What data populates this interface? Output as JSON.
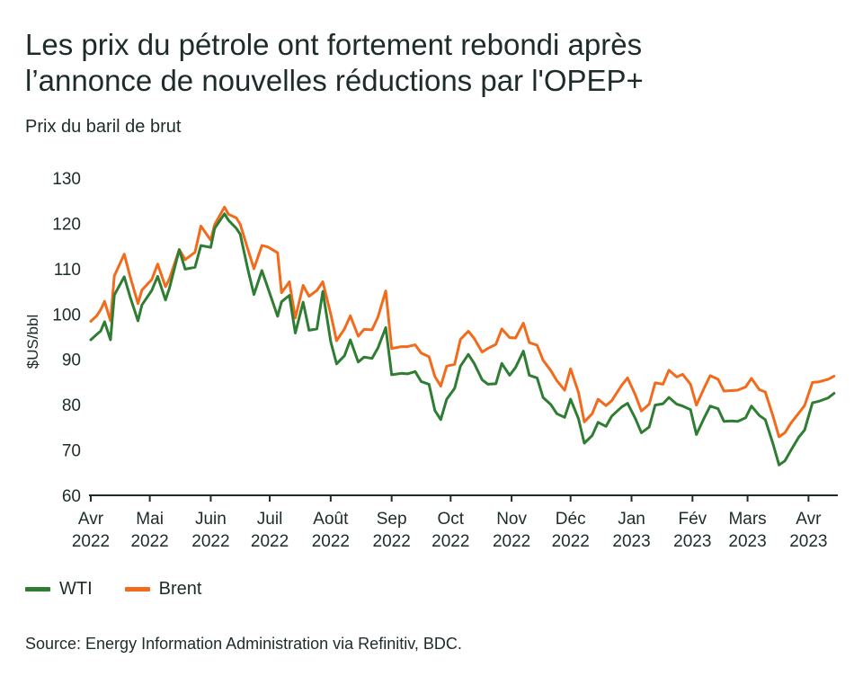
{
  "title_line1": "Les prix du pétrole ont fortement rebondi après",
  "title_line2": "l’annonce de nouvelles réductions par l'OPEP+",
  "subtitle": "Prix du baril de brut",
  "source": "Source: Energy Information Administration via Refinitiv, BDC.",
  "colors": {
    "WTI": "#2e7d32",
    "Brent": "#f26a1b",
    "axis": "#1d2b2b"
  },
  "chart_data": {
    "type": "line",
    "ylabel": "$US/bbl",
    "ylim": [
      60,
      130
    ],
    "yticks": [
      60,
      70,
      80,
      90,
      100,
      110,
      120,
      130
    ],
    "grid": false,
    "legend_position": "bottom-left",
    "xlim": [
      "2022-04-01",
      "2023-04-15"
    ],
    "xticks": [
      {
        "date": "2022-04-01",
        "month": "Avr",
        "year": "2022"
      },
      {
        "date": "2022-05-01",
        "month": "Mai",
        "year": "2022"
      },
      {
        "date": "2022-06-01",
        "month": "Juin",
        "year": "2022"
      },
      {
        "date": "2022-07-01",
        "month": "Juil",
        "year": "2022"
      },
      {
        "date": "2022-08-01",
        "month": "Août",
        "year": "2022"
      },
      {
        "date": "2022-09-01",
        "month": "Sep",
        "year": "2022"
      },
      {
        "date": "2022-10-01",
        "month": "Oct",
        "year": "2022"
      },
      {
        "date": "2022-11-01",
        "month": "Nov",
        "year": "2022"
      },
      {
        "date": "2022-12-01",
        "month": "Déc",
        "year": "2022"
      },
      {
        "date": "2023-01-01",
        "month": "Jan",
        "year": "2023"
      },
      {
        "date": "2023-02-01",
        "month": "Fév",
        "year": "2023"
      },
      {
        "date": "2023-03-01",
        "month": "Mars",
        "year": "2023"
      },
      {
        "date": "2023-04-01",
        "month": "Avr",
        "year": "2023"
      }
    ],
    "series": [
      {
        "name": "WTI",
        "x": [
          "2022-04-01",
          "2022-04-04",
          "2022-04-06",
          "2022-04-08",
          "2022-04-11",
          "2022-04-13",
          "2022-04-18",
          "2022-04-21",
          "2022-04-25",
          "2022-04-27",
          "2022-05-02",
          "2022-05-05",
          "2022-05-09",
          "2022-05-11",
          "2022-05-16",
          "2022-05-19",
          "2022-05-24",
          "2022-05-27",
          "2022-06-01",
          "2022-06-03",
          "2022-06-08",
          "2022-06-10",
          "2022-06-14",
          "2022-06-16",
          "2022-06-20",
          "2022-06-23",
          "2022-06-27",
          "2022-06-30",
          "2022-07-05",
          "2022-07-07",
          "2022-07-11",
          "2022-07-14",
          "2022-07-18",
          "2022-07-21",
          "2022-07-25",
          "2022-07-28",
          "2022-08-01",
          "2022-08-04",
          "2022-08-08",
          "2022-08-11",
          "2022-08-15",
          "2022-08-18",
          "2022-08-22",
          "2022-08-25",
          "2022-08-29",
          "2022-09-01",
          "2022-09-06",
          "2022-09-09",
          "2022-09-13",
          "2022-09-16",
          "2022-09-20",
          "2022-09-23",
          "2022-09-26",
          "2022-09-29",
          "2022-10-03",
          "2022-10-06",
          "2022-10-10",
          "2022-10-13",
          "2022-10-17",
          "2022-10-20",
          "2022-10-24",
          "2022-10-27",
          "2022-10-31",
          "2022-11-03",
          "2022-11-07",
          "2022-11-10",
          "2022-11-14",
          "2022-11-17",
          "2022-11-21",
          "2022-11-24",
          "2022-11-28",
          "2022-12-01",
          "2022-12-05",
          "2022-12-08",
          "2022-12-12",
          "2022-12-15",
          "2022-12-19",
          "2022-12-22",
          "2022-12-27",
          "2022-12-30",
          "2023-01-03",
          "2023-01-06",
          "2023-01-10",
          "2023-01-13",
          "2023-01-17",
          "2023-01-20",
          "2023-01-24",
          "2023-01-27",
          "2023-01-31",
          "2023-02-03",
          "2023-02-07",
          "2023-02-10",
          "2023-02-14",
          "2023-02-17",
          "2023-02-21",
          "2023-02-24",
          "2023-02-28",
          "2023-03-03",
          "2023-03-07",
          "2023-03-10",
          "2023-03-14",
          "2023-03-17",
          "2023-03-20",
          "2023-03-23",
          "2023-03-27",
          "2023-03-30",
          "2023-04-03",
          "2023-04-06",
          "2023-04-11",
          "2023-04-14"
        ],
        "y": [
          94.3,
          95.5,
          96.2,
          98.3,
          94.3,
          104.2,
          108.2,
          103.8,
          98.5,
          102.0,
          105.2,
          108.3,
          103.1,
          105.7,
          114.2,
          109.9,
          110.3,
          115.1,
          114.7,
          118.9,
          122.1,
          120.7,
          118.9,
          117.6,
          109.6,
          104.3,
          109.6,
          105.8,
          99.5,
          102.7,
          104.1,
          95.8,
          102.6,
          96.4,
          96.7,
          105.0,
          93.9,
          89.0,
          90.8,
          94.3,
          89.4,
          90.5,
          90.2,
          92.5,
          97.0,
          86.6,
          86.9,
          86.8,
          87.3,
          85.1,
          84.5,
          78.7,
          76.7,
          81.2,
          83.6,
          88.5,
          91.1,
          89.1,
          85.5,
          84.5,
          84.6,
          89.1,
          86.5,
          88.2,
          91.8,
          86.5,
          85.9,
          81.6,
          80.0,
          78.0,
          77.2,
          81.2,
          76.9,
          71.5,
          73.2,
          76.1,
          75.2,
          77.5,
          79.5,
          80.3,
          76.9,
          73.8,
          75.1,
          79.9,
          80.2,
          81.6,
          80.1,
          79.7,
          78.9,
          73.4,
          77.1,
          79.7,
          79.1,
          76.3,
          76.4,
          76.3,
          77.1,
          79.7,
          77.6,
          76.7,
          71.3,
          66.7,
          67.6,
          69.9,
          72.8,
          74.4,
          80.4,
          80.7,
          81.5,
          82.5
        ]
      },
      {
        "name": "Brent",
        "x": [
          "2022-04-01",
          "2022-04-04",
          "2022-04-06",
          "2022-04-08",
          "2022-04-11",
          "2022-04-13",
          "2022-04-18",
          "2022-04-21",
          "2022-04-25",
          "2022-04-27",
          "2022-05-02",
          "2022-05-05",
          "2022-05-09",
          "2022-05-11",
          "2022-05-16",
          "2022-05-19",
          "2022-05-24",
          "2022-05-27",
          "2022-06-01",
          "2022-06-03",
          "2022-06-08",
          "2022-06-10",
          "2022-06-14",
          "2022-06-16",
          "2022-06-20",
          "2022-06-23",
          "2022-06-27",
          "2022-06-30",
          "2022-07-05",
          "2022-07-07",
          "2022-07-11",
          "2022-07-14",
          "2022-07-18",
          "2022-07-21",
          "2022-07-25",
          "2022-07-28",
          "2022-08-01",
          "2022-08-04",
          "2022-08-08",
          "2022-08-11",
          "2022-08-15",
          "2022-08-18",
          "2022-08-22",
          "2022-08-25",
          "2022-08-29",
          "2022-09-01",
          "2022-09-06",
          "2022-09-09",
          "2022-09-13",
          "2022-09-16",
          "2022-09-20",
          "2022-09-23",
          "2022-09-26",
          "2022-09-29",
          "2022-10-03",
          "2022-10-06",
          "2022-10-10",
          "2022-10-13",
          "2022-10-17",
          "2022-10-20",
          "2022-10-24",
          "2022-10-27",
          "2022-10-31",
          "2022-11-03",
          "2022-11-07",
          "2022-11-10",
          "2022-11-14",
          "2022-11-17",
          "2022-11-21",
          "2022-11-24",
          "2022-11-28",
          "2022-12-01",
          "2022-12-05",
          "2022-12-08",
          "2022-12-12",
          "2022-12-15",
          "2022-12-19",
          "2022-12-22",
          "2022-12-27",
          "2022-12-30",
          "2023-01-03",
          "2023-01-06",
          "2023-01-10",
          "2023-01-13",
          "2023-01-17",
          "2023-01-20",
          "2023-01-24",
          "2023-01-27",
          "2023-01-31",
          "2023-02-03",
          "2023-02-07",
          "2023-02-10",
          "2023-02-14",
          "2023-02-17",
          "2023-02-21",
          "2023-02-24",
          "2023-02-28",
          "2023-03-03",
          "2023-03-07",
          "2023-03-10",
          "2023-03-14",
          "2023-03-17",
          "2023-03-20",
          "2023-03-23",
          "2023-03-27",
          "2023-03-30",
          "2023-04-03",
          "2023-04-06",
          "2023-04-11",
          "2023-04-14"
        ],
        "y": [
          98.4,
          99.6,
          100.9,
          102.8,
          98.5,
          108.4,
          113.2,
          108.3,
          102.3,
          105.3,
          107.6,
          111.0,
          106.0,
          107.8,
          114.2,
          112.0,
          113.6,
          119.4,
          116.3,
          119.7,
          123.6,
          122.0,
          121.2,
          119.8,
          114.1,
          110.0,
          115.1,
          114.8,
          113.5,
          104.7,
          107.1,
          99.1,
          106.3,
          103.9,
          105.2,
          107.1,
          100.0,
          94.1,
          96.7,
          99.6,
          95.1,
          96.6,
          96.5,
          99.3,
          105.1,
          92.4,
          92.8,
          92.8,
          93.2,
          91.4,
          90.6,
          86.2,
          84.1,
          88.5,
          88.9,
          94.4,
          96.2,
          94.6,
          91.6,
          92.4,
          93.3,
          96.7,
          94.8,
          94.7,
          98.0,
          93.7,
          93.1,
          89.8,
          87.5,
          85.3,
          83.2,
          87.9,
          82.7,
          76.2,
          78.0,
          81.2,
          79.8,
          80.9,
          84.3,
          85.9,
          82.1,
          78.6,
          80.1,
          84.8,
          84.5,
          87.6,
          86.1,
          86.7,
          84.5,
          79.9,
          83.7,
          86.4,
          85.6,
          83.0,
          83.1,
          83.2,
          83.9,
          85.8,
          83.3,
          82.8,
          77.4,
          72.9,
          73.8,
          75.9,
          78.1,
          79.8,
          84.9,
          85.0,
          85.6,
          86.3
        ]
      }
    ]
  }
}
